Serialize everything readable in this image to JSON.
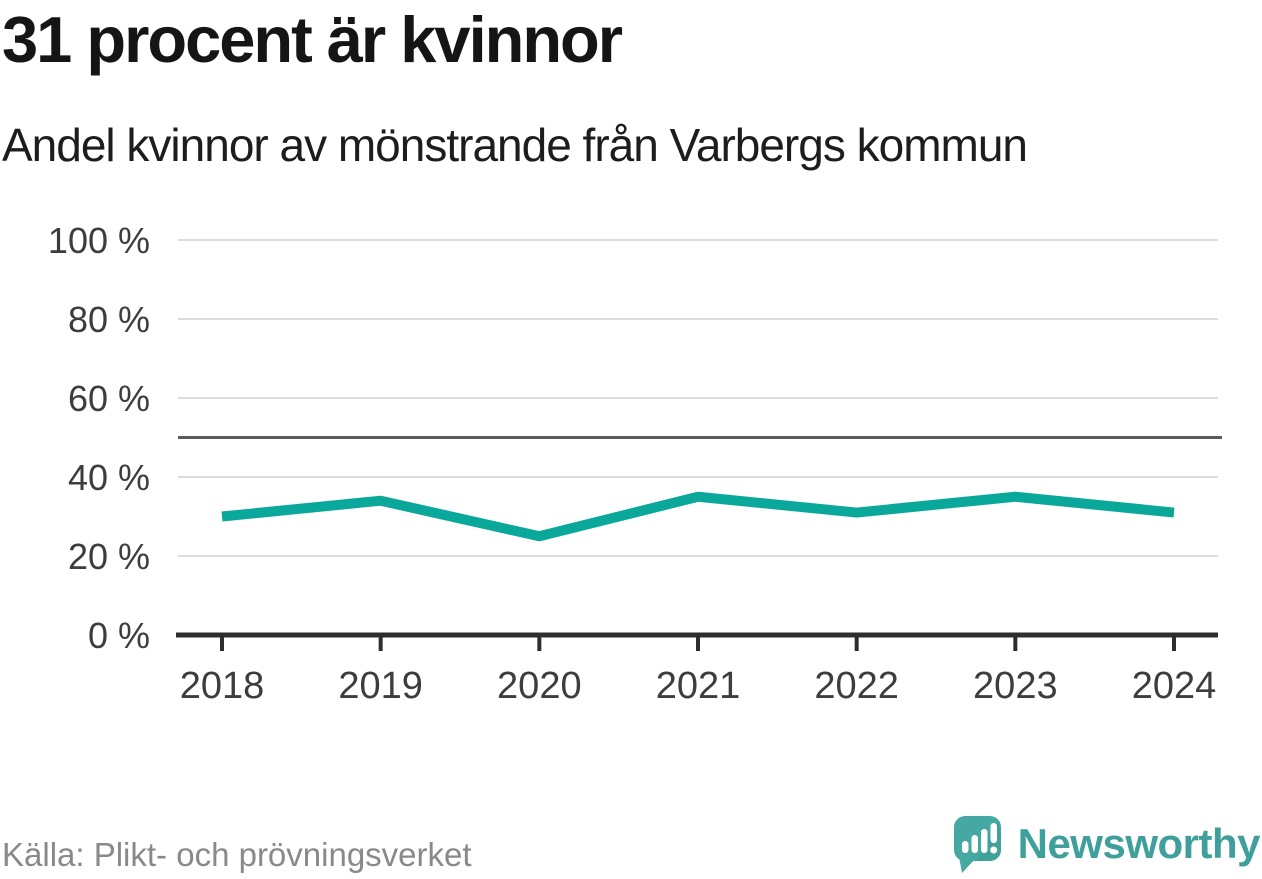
{
  "chart_data": {
    "type": "line",
    "title": "31 procent är kvinnor",
    "subtitle": "Andel kvinnor av mönstrande från Varbergs kommun",
    "x": [
      "2018",
      "2019",
      "2020",
      "2021",
      "2022",
      "2023",
      "2024"
    ],
    "series": [
      {
        "name": "Andel kvinnor av mönstrande",
        "color": "#0aa79b",
        "values": [
          30,
          34,
          25,
          35,
          31,
          35,
          31
        ]
      }
    ],
    "unit": "%",
    "ylim": [
      0,
      100
    ],
    "yticks": [
      0,
      20,
      40,
      60,
      80,
      100
    ],
    "ytick_suffix": " %",
    "reference_line_value": 50,
    "grid": true,
    "legend": false
  },
  "footer": {
    "source": "Källa: Plikt- och prövningsverket",
    "brand": "Newsworthy"
  },
  "colors": {
    "line": "#0aa79b",
    "grid": "#dcdcdc",
    "reference_line": "#595a5c",
    "axis": "#2e2e2e",
    "tick_label": "#3d3d3d",
    "source_text": "#87898b",
    "brand_icon": "#46a8a2",
    "brand_text": "#3f9f9a",
    "title_text": "#151515"
  }
}
